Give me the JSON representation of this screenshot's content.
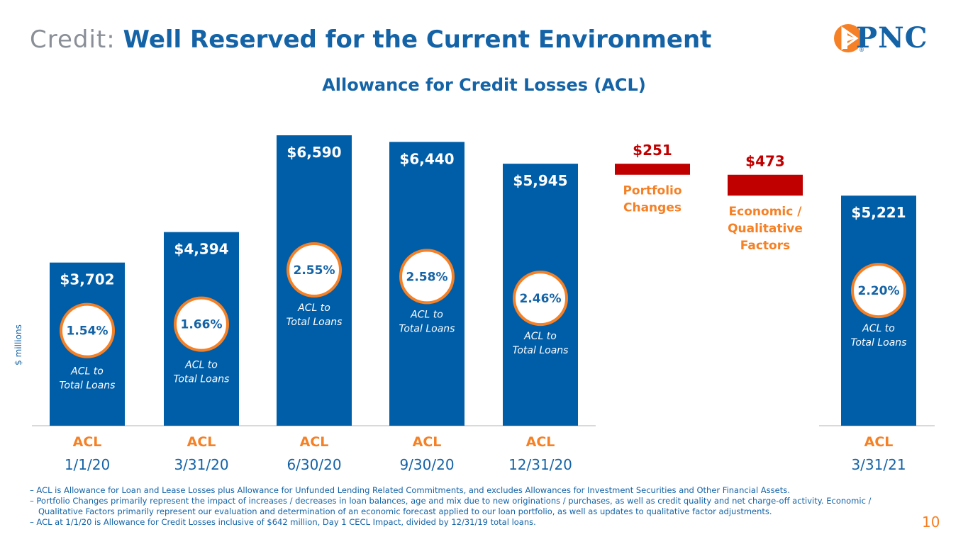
{
  "header": {
    "title_prefix": "Credit:",
    "title_main": "Well Reserved for the Current Environment",
    "logo_text": "PNC",
    "logo_mark": "®"
  },
  "chart_data": {
    "type": "bar",
    "title": "Allowance for Credit Losses (ACL)",
    "ylabel": "$ millions",
    "categories": [
      {
        "label": "ACL",
        "date": "1/1/20"
      },
      {
        "label": "ACL",
        "date": "3/31/20"
      },
      {
        "label": "ACL",
        "date": "6/30/20"
      },
      {
        "label": "ACL",
        "date": "9/30/20"
      },
      {
        "label": "ACL",
        "date": "12/31/20"
      },
      {
        "label": "",
        "date": ""
      },
      {
        "label": "",
        "date": ""
      },
      {
        "label": "ACL",
        "date": "3/31/21"
      }
    ],
    "bars": [
      {
        "kind": "total",
        "value": 3702,
        "value_label": "$3,702",
        "ratio": "1.54%",
        "ratio_caption": [
          "ACL to",
          "Total Loans"
        ]
      },
      {
        "kind": "total",
        "value": 4394,
        "value_label": "$4,394",
        "ratio": "1.66%",
        "ratio_caption": [
          "ACL to",
          "Total Loans"
        ]
      },
      {
        "kind": "total",
        "value": 6590,
        "value_label": "$6,590",
        "ratio": "2.55%",
        "ratio_caption": [
          "ACL to",
          "Total Loans"
        ]
      },
      {
        "kind": "total",
        "value": 6440,
        "value_label": "$6,440",
        "ratio": "2.58%",
        "ratio_caption": [
          "ACL to",
          "Total Loans"
        ]
      },
      {
        "kind": "total",
        "value": 5945,
        "value_label": "$5,945",
        "ratio": "2.46%",
        "ratio_caption": [
          "ACL to",
          "Total Loans"
        ]
      },
      {
        "kind": "decrease",
        "value": -251,
        "value_label": "$251",
        "caption": [
          "Portfolio",
          "Changes"
        ]
      },
      {
        "kind": "decrease",
        "value": -473,
        "value_label": "$473",
        "caption": [
          "Economic /",
          "Qualitative",
          "Factors"
        ]
      },
      {
        "kind": "total",
        "value": 5221,
        "value_label": "$5,221",
        "ratio": "2.20%",
        "ratio_caption": [
          "ACL to",
          "Total Loans"
        ]
      }
    ],
    "colors": {
      "bar": "#005ea8",
      "decrease": "#c00000",
      "accent": "#f58025",
      "text_blue": "#1463a6"
    }
  },
  "footnotes": [
    "– ACL is Allowance for Loan and Lease Losses plus Allowance for Unfunded Lending Related Commitments, and excludes Allowances for Investment Securities and Other Financial Assets.",
    "– Portfolio Changes primarily represent the impact of increases / decreases in loan balances, age and mix due to new originations / purchases, as well as credit quality and net charge-off activity. Economic / Qualitative Factors primarily represent our evaluation and determination of an economic forecast applied to our loan portfolio, as well as updates to qualitative factor adjustments.",
    "– ACL at 1/1/20 is Allowance for Credit Losses inclusive of $642 million, Day 1 CECL Impact, divided by 12/31/19 total loans."
  ],
  "page_number": "10"
}
